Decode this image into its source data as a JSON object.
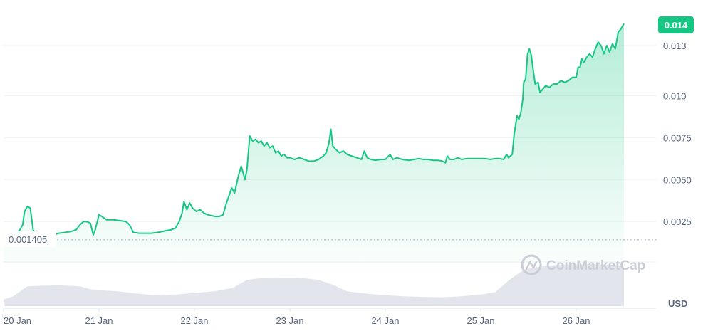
{
  "chart_data": {
    "type": "area",
    "x_axis_labels": [
      "20 Jan",
      "21 Jan",
      "22 Jan",
      "23 Jan",
      "24 Jan",
      "25 Jan",
      "26 Jan"
    ],
    "y_ticks": [
      {
        "value": 0.0025,
        "label": "0.0025"
      },
      {
        "value": 0.005,
        "label": "0.0050"
      },
      {
        "value": 0.0075,
        "label": "0.0075"
      },
      {
        "value": 0.01,
        "label": "0.010"
      },
      {
        "value": 0.013,
        "label": "0.013"
      }
    ],
    "ylim": [
      0.0,
      0.0155
    ],
    "x_range_days": [
      0.0,
      6.95
    ],
    "current_price": {
      "value": 0.0143,
      "label": "0.014"
    },
    "start_price": {
      "value": 0.001405,
      "label": "0.001405"
    },
    "currency_label": "USD",
    "watermark": "CoinMarketCap",
    "line_color": "#16c784",
    "badge_color": "#16c784",
    "series": [
      {
        "points": [
          [
            0.0,
            0.0016
          ],
          [
            0.05,
            0.00155
          ],
          [
            0.08,
            0.0016
          ],
          [
            0.12,
            0.0017
          ],
          [
            0.17,
            0.002
          ],
          [
            0.2,
            0.0023
          ],
          [
            0.22,
            0.0031
          ],
          [
            0.25,
            0.0034
          ],
          [
            0.28,
            0.0033
          ],
          [
            0.31,
            0.002
          ],
          [
            0.34,
            0.00175
          ],
          [
            0.4,
            0.0016
          ],
          [
            0.46,
            0.00155
          ],
          [
            0.52,
            0.0017
          ],
          [
            0.58,
            0.0018
          ],
          [
            0.65,
            0.00185
          ],
          [
            0.7,
            0.0019
          ],
          [
            0.76,
            0.002
          ],
          [
            0.8,
            0.0023
          ],
          [
            0.84,
            0.0025
          ],
          [
            0.88,
            0.00248
          ],
          [
            0.91,
            0.0024
          ],
          [
            0.94,
            0.0017
          ],
          [
            0.96,
            0.002
          ],
          [
            1.0,
            0.0029
          ],
          [
            1.03,
            0.0028
          ],
          [
            1.08,
            0.0026
          ],
          [
            1.15,
            0.0026
          ],
          [
            1.22,
            0.00255
          ],
          [
            1.28,
            0.0025
          ],
          [
            1.32,
            0.0023
          ],
          [
            1.36,
            0.00185
          ],
          [
            1.42,
            0.0018
          ],
          [
            1.48,
            0.0018
          ],
          [
            1.55,
            0.0018
          ],
          [
            1.62,
            0.00185
          ],
          [
            1.7,
            0.00195
          ],
          [
            1.75,
            0.002
          ],
          [
            1.8,
            0.0021
          ],
          [
            1.84,
            0.0025
          ],
          [
            1.87,
            0.003
          ],
          [
            1.89,
            0.0037
          ],
          [
            1.92,
            0.0032
          ],
          [
            1.95,
            0.0036
          ],
          [
            1.98,
            0.0033
          ],
          [
            2.02,
            0.0031
          ],
          [
            2.06,
            0.0032
          ],
          [
            2.1,
            0.003
          ],
          [
            2.14,
            0.0029
          ],
          [
            2.18,
            0.00285
          ],
          [
            2.22,
            0.0028
          ],
          [
            2.26,
            0.0028
          ],
          [
            2.3,
            0.0029
          ],
          [
            2.33,
            0.0035
          ],
          [
            2.36,
            0.004
          ],
          [
            2.39,
            0.0045
          ],
          [
            2.42,
            0.0042
          ],
          [
            2.46,
            0.0052
          ],
          [
            2.49,
            0.0058
          ],
          [
            2.51,
            0.0054
          ],
          [
            2.53,
            0.005
          ],
          [
            2.55,
            0.0056
          ],
          [
            2.58,
            0.0076
          ],
          [
            2.61,
            0.0073
          ],
          [
            2.64,
            0.0074
          ],
          [
            2.67,
            0.0072
          ],
          [
            2.7,
            0.0073
          ],
          [
            2.73,
            0.007
          ],
          [
            2.76,
            0.0072
          ],
          [
            2.79,
            0.0069
          ],
          [
            2.82,
            0.007
          ],
          [
            2.85,
            0.0066
          ],
          [
            2.88,
            0.0067
          ],
          [
            2.91,
            0.0064
          ],
          [
            2.94,
            0.0065
          ],
          [
            2.97,
            0.0063
          ],
          [
            3.0,
            0.0063
          ],
          [
            3.05,
            0.0062
          ],
          [
            3.1,
            0.0063
          ],
          [
            3.15,
            0.0062
          ],
          [
            3.2,
            0.0061
          ],
          [
            3.25,
            0.0061
          ],
          [
            3.3,
            0.0062
          ],
          [
            3.35,
            0.0064
          ],
          [
            3.38,
            0.0066
          ],
          [
            3.41,
            0.0072
          ],
          [
            3.43,
            0.008
          ],
          [
            3.45,
            0.007
          ],
          [
            3.48,
            0.0068
          ],
          [
            3.52,
            0.0066
          ],
          [
            3.56,
            0.0067
          ],
          [
            3.6,
            0.0065
          ],
          [
            3.65,
            0.0064
          ],
          [
            3.7,
            0.0063
          ],
          [
            3.75,
            0.0062
          ],
          [
            3.78,
            0.0067
          ],
          [
            3.81,
            0.0063
          ],
          [
            3.85,
            0.0062
          ],
          [
            3.9,
            0.00615
          ],
          [
            3.95,
            0.0062
          ],
          [
            4.0,
            0.0062
          ],
          [
            4.05,
            0.0065
          ],
          [
            4.08,
            0.0062
          ],
          [
            4.12,
            0.0063
          ],
          [
            4.18,
            0.0062
          ],
          [
            4.25,
            0.00615
          ],
          [
            4.3,
            0.0062
          ],
          [
            4.35,
            0.00625
          ],
          [
            4.4,
            0.0062
          ],
          [
            4.45,
            0.0062
          ],
          [
            4.5,
            0.00615
          ],
          [
            4.55,
            0.00615
          ],
          [
            4.6,
            0.0061
          ],
          [
            4.63,
            0.006
          ],
          [
            4.65,
            0.0064
          ],
          [
            4.68,
            0.0062
          ],
          [
            4.72,
            0.0062
          ],
          [
            4.76,
            0.0063
          ],
          [
            4.8,
            0.0062
          ],
          [
            4.85,
            0.00625
          ],
          [
            4.9,
            0.00625
          ],
          [
            4.95,
            0.00625
          ],
          [
            5.0,
            0.00625
          ],
          [
            5.05,
            0.00625
          ],
          [
            5.1,
            0.0062
          ],
          [
            5.15,
            0.00625
          ],
          [
            5.2,
            0.00625
          ],
          [
            5.24,
            0.0062
          ],
          [
            5.27,
            0.0065
          ],
          [
            5.29,
            0.0063
          ],
          [
            5.31,
            0.0064
          ],
          [
            5.33,
            0.0065
          ],
          [
            5.35,
            0.0077
          ],
          [
            5.38,
            0.0088
          ],
          [
            5.4,
            0.0086
          ],
          [
            5.42,
            0.009
          ],
          [
            5.44,
            0.0098
          ],
          [
            5.45,
            0.0108
          ],
          [
            5.47,
            0.011
          ],
          [
            5.49,
            0.0125
          ],
          [
            5.51,
            0.0128
          ],
          [
            5.53,
            0.0124
          ],
          [
            5.55,
            0.0115
          ],
          [
            5.57,
            0.0107
          ],
          [
            5.6,
            0.0108
          ],
          [
            5.62,
            0.0102
          ],
          [
            5.65,
            0.0104
          ],
          [
            5.68,
            0.0106
          ],
          [
            5.72,
            0.0105
          ],
          [
            5.76,
            0.0107
          ],
          [
            5.8,
            0.0107
          ],
          [
            5.84,
            0.0109
          ],
          [
            5.88,
            0.0108
          ],
          [
            5.92,
            0.0109
          ],
          [
            5.96,
            0.0111
          ],
          [
            6.0,
            0.0111
          ],
          [
            6.02,
            0.0117
          ],
          [
            6.04,
            0.0117
          ],
          [
            6.06,
            0.0122
          ],
          [
            6.08,
            0.012
          ],
          [
            6.11,
            0.0123
          ],
          [
            6.14,
            0.0125
          ],
          [
            6.17,
            0.0123
          ],
          [
            6.2,
            0.0128
          ],
          [
            6.23,
            0.0132
          ],
          [
            6.26,
            0.013
          ],
          [
            6.29,
            0.0125
          ],
          [
            6.32,
            0.013
          ],
          [
            6.35,
            0.0126
          ],
          [
            6.38,
            0.0131
          ],
          [
            6.41,
            0.0128
          ],
          [
            6.44,
            0.0138
          ],
          [
            6.47,
            0.014
          ],
          [
            6.5,
            0.0143
          ]
        ]
      }
    ],
    "volume": [
      [
        0.0,
        0.2
      ],
      [
        0.1,
        0.3
      ],
      [
        0.25,
        0.6
      ],
      [
        0.4,
        0.62
      ],
      [
        0.6,
        0.63
      ],
      [
        0.8,
        0.6
      ],
      [
        0.9,
        0.52
      ],
      [
        1.0,
        0.48
      ],
      [
        1.2,
        0.45
      ],
      [
        1.4,
        0.38
      ],
      [
        1.6,
        0.33
      ],
      [
        1.8,
        0.35
      ],
      [
        2.0,
        0.4
      ],
      [
        2.2,
        0.45
      ],
      [
        2.4,
        0.55
      ],
      [
        2.55,
        0.8
      ],
      [
        2.7,
        0.85
      ],
      [
        2.9,
        0.86
      ],
      [
        3.1,
        0.86
      ],
      [
        3.3,
        0.8
      ],
      [
        3.45,
        0.65
      ],
      [
        3.6,
        0.45
      ],
      [
        3.8,
        0.38
      ],
      [
        4.0,
        0.33
      ],
      [
        4.2,
        0.3
      ],
      [
        4.4,
        0.28
      ],
      [
        4.6,
        0.27
      ],
      [
        4.8,
        0.3
      ],
      [
        5.0,
        0.35
      ],
      [
        5.15,
        0.42
      ],
      [
        5.3,
        0.8
      ],
      [
        5.45,
        1.1
      ],
      [
        5.6,
        1.2
      ],
      [
        5.8,
        1.25
      ],
      [
        6.0,
        1.27
      ],
      [
        6.2,
        1.28
      ],
      [
        6.4,
        1.25
      ],
      [
        6.5,
        1.2
      ]
    ]
  }
}
